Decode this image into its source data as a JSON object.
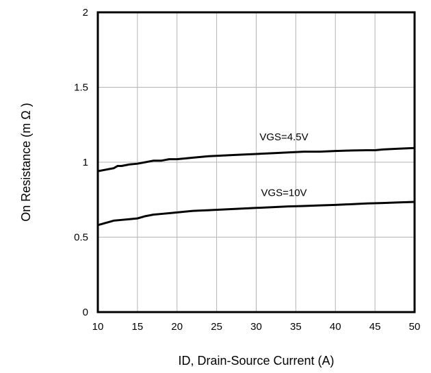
{
  "chart_data": {
    "type": "line",
    "title": "",
    "xlabel": "ID, Drain-Source Current (A)",
    "ylabel": "On Resistance (m Ω )",
    "xlim": [
      10,
      50
    ],
    "ylim": [
      0,
      2
    ],
    "x_ticks": [
      10,
      15,
      20,
      25,
      30,
      35,
      40,
      45,
      50
    ],
    "y_ticks": [
      0,
      0.5,
      1,
      1.5,
      2
    ],
    "x_tick_labels": [
      "10",
      "15",
      "20",
      "25",
      "30",
      "35",
      "40",
      "45",
      "50"
    ],
    "y_tick_labels": [
      "0",
      "0.5",
      "1",
      "1.5",
      "2"
    ],
    "grid": true,
    "legend": "none",
    "series": [
      {
        "x": [
          10,
          11,
          12,
          12.5,
          13,
          14,
          15,
          16,
          17,
          18,
          19,
          20,
          22,
          24,
          26,
          28,
          30,
          32,
          34,
          36,
          38,
          40,
          42,
          44,
          45,
          46,
          48,
          50
        ],
        "y": [
          0.94,
          0.95,
          0.96,
          0.975,
          0.975,
          0.985,
          0.99,
          1.0,
          1.01,
          1.01,
          1.02,
          1.02,
          1.03,
          1.04,
          1.045,
          1.05,
          1.055,
          1.06,
          1.065,
          1.07,
          1.07,
          1.075,
          1.078,
          1.08,
          1.08,
          1.085,
          1.09,
          1.095
        ]
      },
      {
        "x": [
          10,
          11,
          12,
          13,
          14,
          15,
          16,
          17,
          18,
          19,
          20,
          22,
          24,
          26,
          28,
          30,
          32,
          34,
          36,
          38,
          40,
          42,
          44,
          46,
          48,
          50
        ],
        "y": [
          0.58,
          0.595,
          0.61,
          0.615,
          0.62,
          0.625,
          0.64,
          0.65,
          0.655,
          0.66,
          0.665,
          0.675,
          0.68,
          0.685,
          0.69,
          0.695,
          0.7,
          0.705,
          0.708,
          0.712,
          0.715,
          0.72,
          0.725,
          0.728,
          0.732,
          0.735
        ]
      }
    ],
    "annotations": [
      {
        "text": "VGS=4.5V",
        "x": 33.5,
        "y": 1.145
      },
      {
        "text": "VGS=10V",
        "x": 33.5,
        "y": 0.775
      }
    ],
    "colors": {
      "line": "#000000",
      "grid": "#b3b3b3",
      "frame": "#000000",
      "background": "#ffffff"
    }
  }
}
